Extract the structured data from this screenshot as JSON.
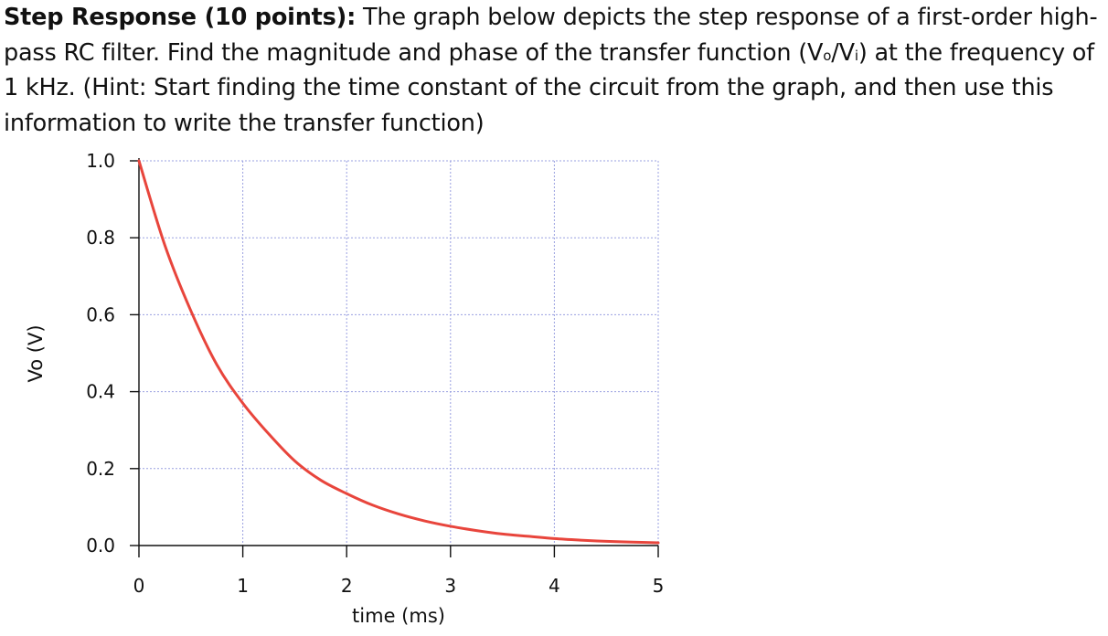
{
  "problem": {
    "heading": "Step Response (10 points):",
    "text_1": " The graph below depicts the step response of a first-order high-pass RC filter. Find the magnitude and phase of the transfer function (V",
    "sub_o": "o",
    "text_2": "/V",
    "sub_i": "i",
    "text_3": ") at the frequency of 1 kHz. (Hint: Start finding the time constant of the circuit from the graph, and then use this information to write the transfer function)"
  },
  "chart_data": {
    "type": "line",
    "xlabel": "time (ms)",
    "ylabel": "Vo (V)",
    "xlim": [
      0,
      5
    ],
    "ylim": [
      0,
      1.0
    ],
    "x_ticks": [
      0,
      1,
      2,
      3,
      4,
      5
    ],
    "x_tick_labels": [
      "0",
      "1",
      "2",
      "3",
      "4",
      "5"
    ],
    "y_ticks": [
      0.0,
      0.2,
      0.4,
      0.6,
      0.8,
      1.0
    ],
    "y_tick_labels": [
      "0.0",
      "0.2",
      "0.4",
      "0.6",
      "0.8",
      "1.0"
    ],
    "grid": true,
    "line_color": "#e8453c",
    "grid_color": "#9aa0e0",
    "series": [
      {
        "x": [
          0,
          0.25,
          0.5,
          0.75,
          1.0,
          1.25,
          1.5,
          1.75,
          2.0,
          2.25,
          2.5,
          2.75,
          3.0,
          3.25,
          3.5,
          3.75,
          4.0,
          4.25,
          4.5,
          4.75,
          5.0
        ],
        "values": [
          1.0,
          0.78,
          0.61,
          0.47,
          0.37,
          0.29,
          0.22,
          0.17,
          0.135,
          0.105,
          0.082,
          0.064,
          0.05,
          0.039,
          0.03,
          0.024,
          0.018,
          0.014,
          0.011,
          0.009,
          0.007
        ]
      }
    ]
  }
}
